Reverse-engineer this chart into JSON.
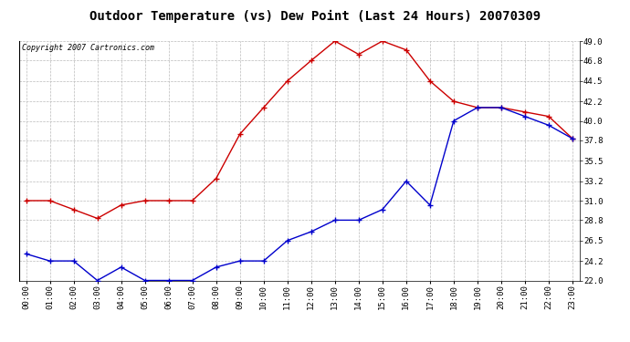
{
  "title": "Outdoor Temperature (vs) Dew Point (Last 24 Hours) 20070309",
  "copyright_text": "Copyright 2007 Cartronics.com",
  "hours": [
    "00:00",
    "01:00",
    "02:00",
    "03:00",
    "04:00",
    "05:00",
    "06:00",
    "07:00",
    "08:00",
    "09:00",
    "10:00",
    "11:00",
    "12:00",
    "13:00",
    "14:00",
    "15:00",
    "16:00",
    "17:00",
    "18:00",
    "19:00",
    "20:00",
    "21:00",
    "22:00",
    "23:00"
  ],
  "temp": [
    31.0,
    31.0,
    30.0,
    29.0,
    30.5,
    31.0,
    31.0,
    31.0,
    33.5,
    38.5,
    41.5,
    44.5,
    46.8,
    49.0,
    47.5,
    49.0,
    48.0,
    44.5,
    42.2,
    41.5,
    41.5,
    41.0,
    40.5,
    38.0
  ],
  "dew": [
    25.0,
    24.2,
    24.2,
    22.0,
    23.5,
    22.0,
    22.0,
    22.0,
    23.5,
    24.2,
    24.2,
    26.5,
    27.5,
    28.8,
    28.8,
    30.0,
    33.2,
    30.5,
    40.0,
    41.5,
    41.5,
    40.5,
    39.5,
    38.0
  ],
  "temp_color": "#cc0000",
  "dew_color": "#0000cc",
  "background_color": "#ffffff",
  "grid_color": "#bbbbbb",
  "title_fontsize": 10,
  "ylabel_right": [
    "22.0",
    "24.2",
    "26.5",
    "28.8",
    "31.0",
    "33.2",
    "35.5",
    "37.8",
    "40.0",
    "42.2",
    "44.5",
    "46.8",
    "49.0"
  ],
  "ymin": 22.0,
  "ymax": 49.0,
  "yticks": [
    22.0,
    24.2,
    26.5,
    28.8,
    31.0,
    33.2,
    35.5,
    37.8,
    40.0,
    42.2,
    44.5,
    46.8,
    49.0
  ]
}
